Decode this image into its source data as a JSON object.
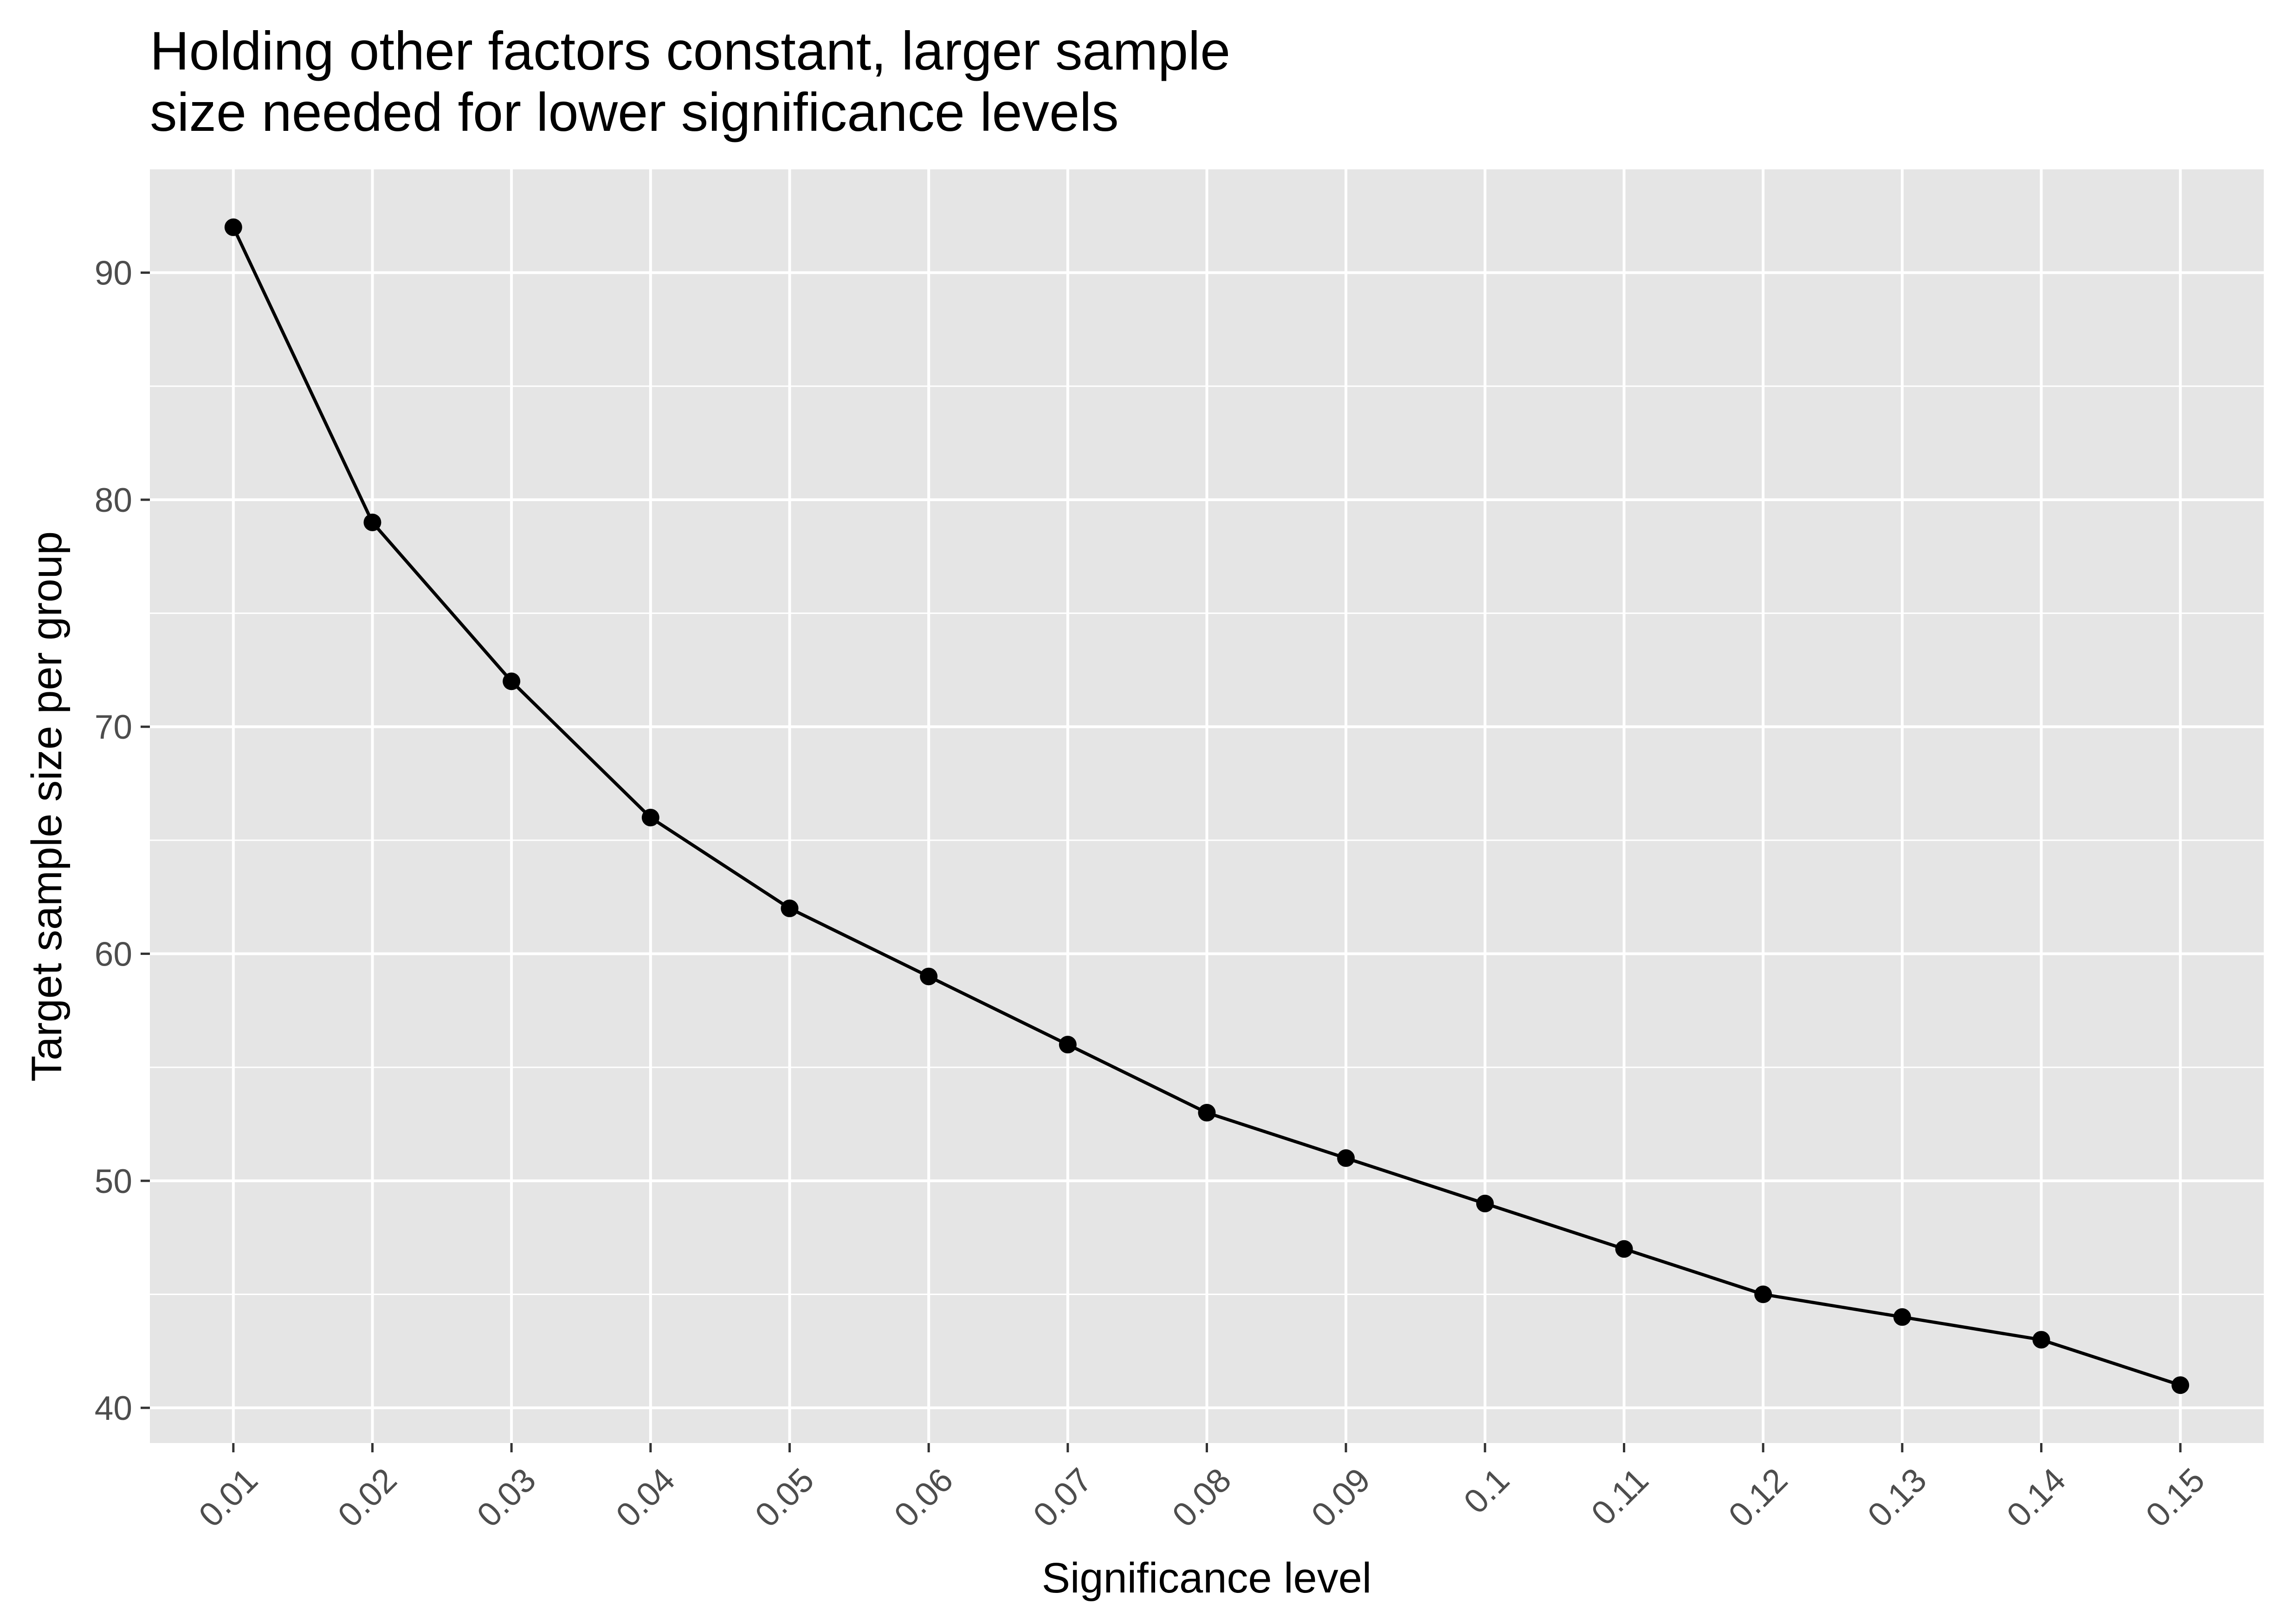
{
  "chart_data": {
    "type": "line",
    "title_lines": [
      "Holding other factors constant, larger sample",
      "size needed for lower significance levels"
    ],
    "xlabel": "Significance level",
    "ylabel": "Target sample size per group",
    "x": [
      0.01,
      0.02,
      0.03,
      0.04,
      0.05,
      0.06,
      0.07,
      0.08,
      0.09,
      0.1,
      0.11,
      0.12,
      0.13,
      0.14,
      0.15
    ],
    "x_tick_labels": [
      "0.01",
      "0.02",
      "0.03",
      "0.04",
      "0.05",
      "0.06",
      "0.07",
      "0.08",
      "0.09",
      "0.1",
      "0.11",
      "0.12",
      "0.13",
      "0.14",
      "0.15"
    ],
    "series": [
      {
        "values": [
          92,
          79,
          72,
          66,
          62,
          59,
          56,
          53,
          51,
          49,
          47,
          45,
          44,
          43,
          41
        ],
        "color": "#000000"
      }
    ],
    "y_ticks": [
      40,
      50,
      60,
      70,
      80,
      90
    ],
    "y_tick_labels": [
      "40",
      "50",
      "60",
      "70",
      "80",
      "90"
    ],
    "xlim": [
      0.004,
      0.156
    ],
    "ylim": [
      38.45,
      94.55
    ],
    "grid": true,
    "legend": "none",
    "panel_background": "#e5e5e5",
    "grid_color": "#ffffff",
    "line_color": "#000000",
    "point_color": "#000000"
  }
}
